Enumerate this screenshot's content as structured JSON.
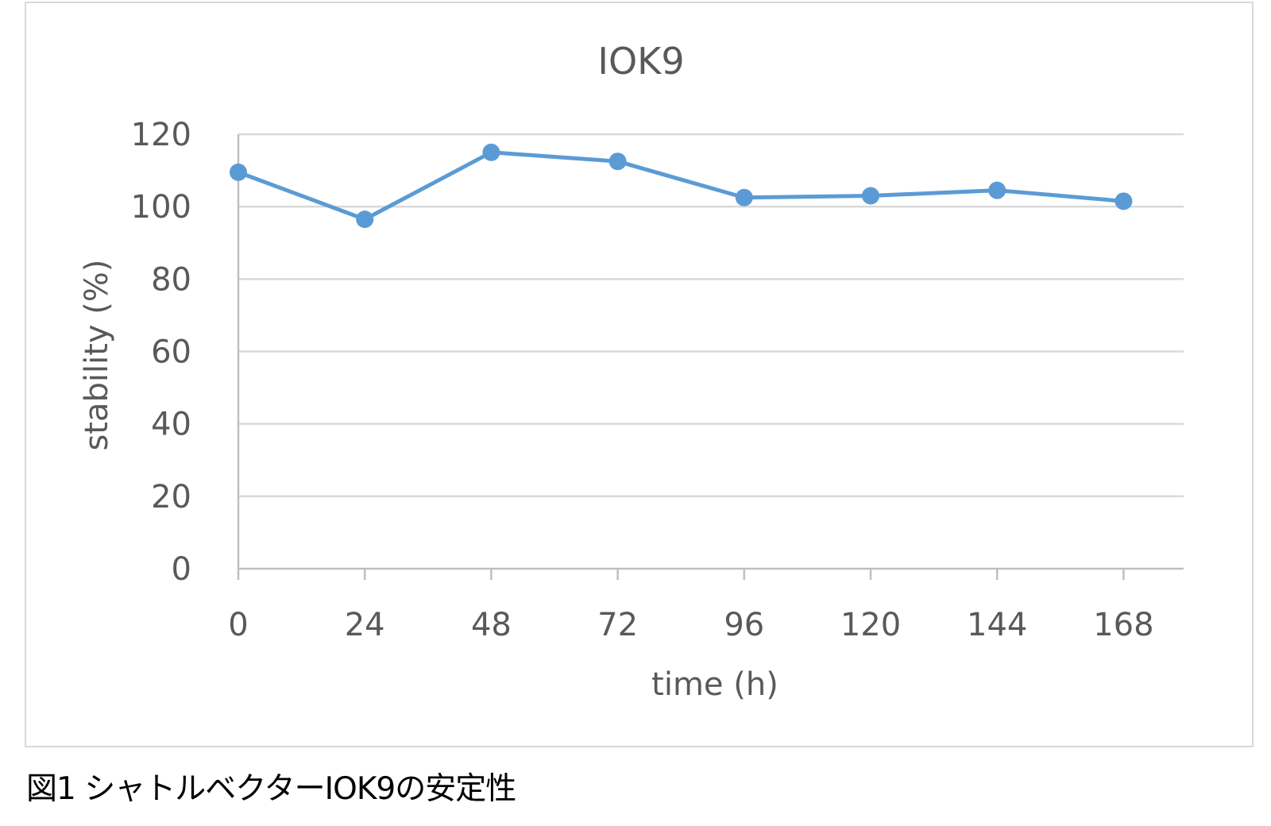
{
  "caption": "図1 シャトルベクターIOK9の安定性",
  "chart_data": {
    "type": "line",
    "title": "IOK9",
    "xlabel": "time (h)",
    "ylabel": "stability (%)",
    "categories": [
      "0",
      "24",
      "48",
      "72",
      "96",
      "120",
      "144",
      "168"
    ],
    "series": [
      {
        "values": [
          109.5,
          96.5,
          115,
          112.5,
          102.5,
          103,
          104.5,
          101.5
        ]
      }
    ],
    "ylim": [
      0,
      120
    ],
    "yticks": [
      0,
      20,
      40,
      60,
      80,
      100,
      120
    ],
    "grid": true,
    "legend": "none",
    "colors": {
      "line": "#5b9bd5",
      "grid": "#d9d9d9",
      "axis": "#bfbfbf",
      "text": "#595959"
    }
  }
}
